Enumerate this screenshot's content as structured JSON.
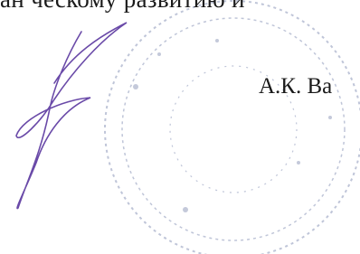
{
  "document": {
    "top_line": "ан ческому развитию и",
    "signatory": "А.К. Ва"
  }
}
